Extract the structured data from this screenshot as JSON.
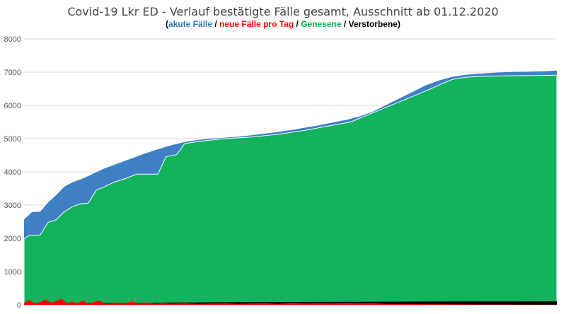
{
  "chart_data": {
    "type": "area",
    "title": "Covid-19 Lkr ED - Verlauf bestätigte Fälle gesamt, Ausschnitt ab 01.12.2020",
    "subtitle": [
      {
        "text": "(",
        "color": "#000000"
      },
      {
        "text": "akute Fälle",
        "color": "#2e75b6"
      },
      {
        "text": " / ",
        "color": "#000000"
      },
      {
        "text": "neue Fälle pro Tag",
        "color": "#ff0000"
      },
      {
        "text": " / ",
        "color": "#000000"
      },
      {
        "text": "Genesene",
        "color": "#00b050"
      },
      {
        "text": " / Verstorbene)",
        "color": "#000000"
      }
    ],
    "xlabel": "",
    "ylabel": "",
    "ylim": [
      0,
      8000
    ],
    "yticks": [
      "0",
      "1000",
      "2000",
      "3000",
      "4000",
      "5000",
      "6000",
      "7000",
      "8000"
    ],
    "grid": true,
    "legend": "none",
    "x_days": 200,
    "series": [
      {
        "key": "total",
        "color": "#3f7fc4",
        "points": [
          [
            0,
            2570
          ],
          [
            3,
            2790
          ],
          [
            6,
            2800
          ],
          [
            9,
            3080
          ],
          [
            12,
            3300
          ],
          [
            15,
            3550
          ],
          [
            18,
            3680
          ],
          [
            22,
            3800
          ],
          [
            26,
            3950
          ],
          [
            30,
            4100
          ],
          [
            35,
            4250
          ],
          [
            40,
            4400
          ],
          [
            45,
            4550
          ],
          [
            50,
            4680
          ],
          [
            55,
            4800
          ],
          [
            60,
            4900
          ],
          [
            65,
            4960
          ],
          [
            70,
            5000
          ],
          [
            75,
            5030
          ],
          [
            80,
            5060
          ],
          [
            85,
            5100
          ],
          [
            90,
            5150
          ],
          [
            95,
            5200
          ],
          [
            100,
            5260
          ],
          [
            105,
            5330
          ],
          [
            110,
            5400
          ],
          [
            115,
            5480
          ],
          [
            120,
            5560
          ],
          [
            125,
            5660
          ],
          [
            130,
            5800
          ],
          [
            135,
            6000
          ],
          [
            140,
            6200
          ],
          [
            145,
            6400
          ],
          [
            150,
            6600
          ],
          [
            155,
            6750
          ],
          [
            160,
            6860
          ],
          [
            165,
            6920
          ],
          [
            170,
            6950
          ],
          [
            175,
            6980
          ],
          [
            180,
            7000
          ],
          [
            185,
            7010
          ],
          [
            190,
            7015
          ],
          [
            195,
            7030
          ],
          [
            199,
            7050
          ]
        ]
      },
      {
        "key": "recovered",
        "color": "#13b25f",
        "points": [
          [
            0,
            1990
          ],
          [
            2,
            2090
          ],
          [
            6,
            2100
          ],
          [
            9,
            2480
          ],
          [
            12,
            2560
          ],
          [
            15,
            2800
          ],
          [
            18,
            2950
          ],
          [
            21,
            3040
          ],
          [
            24,
            3060
          ],
          [
            27,
            3450
          ],
          [
            30,
            3550
          ],
          [
            34,
            3700
          ],
          [
            38,
            3800
          ],
          [
            42,
            3930
          ],
          [
            46,
            3930
          ],
          [
            50,
            3930
          ],
          [
            53,
            4450
          ],
          [
            57,
            4520
          ],
          [
            60,
            4850
          ],
          [
            64,
            4900
          ],
          [
            68,
            4940
          ],
          [
            75,
            5000
          ],
          [
            85,
            5050
          ],
          [
            95,
            5130
          ],
          [
            105,
            5250
          ],
          [
            115,
            5400
          ],
          [
            122,
            5500
          ],
          [
            128,
            5700
          ],
          [
            134,
            5900
          ],
          [
            140,
            6100
          ],
          [
            146,
            6300
          ],
          [
            152,
            6500
          ],
          [
            156,
            6650
          ],
          [
            160,
            6780
          ],
          [
            165,
            6850
          ],
          [
            170,
            6870
          ],
          [
            175,
            6880
          ],
          [
            180,
            6890
          ],
          [
            190,
            6900
          ],
          [
            199,
            6910
          ]
        ]
      },
      {
        "key": "deaths",
        "color": "#000000",
        "points": [
          [
            0,
            40
          ],
          [
            20,
            50
          ],
          [
            40,
            60
          ],
          [
            60,
            70
          ],
          [
            80,
            80
          ],
          [
            100,
            85
          ],
          [
            120,
            90
          ],
          [
            140,
            95
          ],
          [
            160,
            100
          ],
          [
            180,
            100
          ],
          [
            199,
            105
          ]
        ]
      },
      {
        "key": "new_cases",
        "color": "#ff0000",
        "points": [
          [
            0,
            60
          ],
          [
            2,
            140
          ],
          [
            4,
            50
          ],
          [
            6,
            80
          ],
          [
            8,
            160
          ],
          [
            10,
            70
          ],
          [
            12,
            110
          ],
          [
            14,
            180
          ],
          [
            16,
            60
          ],
          [
            18,
            90
          ],
          [
            20,
            50
          ],
          [
            22,
            120
          ],
          [
            24,
            40
          ],
          [
            26,
            80
          ],
          [
            28,
            130
          ],
          [
            30,
            50
          ],
          [
            32,
            40
          ],
          [
            35,
            70
          ],
          [
            38,
            45
          ],
          [
            40,
            90
          ],
          [
            43,
            50
          ],
          [
            46,
            70
          ],
          [
            49,
            40
          ],
          [
            52,
            60
          ],
          [
            55,
            35
          ],
          [
            60,
            50
          ],
          [
            65,
            30
          ],
          [
            70,
            40
          ],
          [
            75,
            45
          ],
          [
            80,
            30
          ],
          [
            85,
            40
          ],
          [
            90,
            50
          ],
          [
            95,
            30
          ],
          [
            100,
            60
          ],
          [
            105,
            40
          ],
          [
            110,
            50
          ],
          [
            115,
            40
          ],
          [
            120,
            60
          ],
          [
            125,
            40
          ],
          [
            130,
            50
          ],
          [
            135,
            30
          ],
          [
            140,
            25
          ],
          [
            150,
            20
          ],
          [
            160,
            15
          ],
          [
            170,
            10
          ],
          [
            180,
            10
          ],
          [
            190,
            5
          ],
          [
            199,
            5
          ]
        ]
      }
    ]
  }
}
